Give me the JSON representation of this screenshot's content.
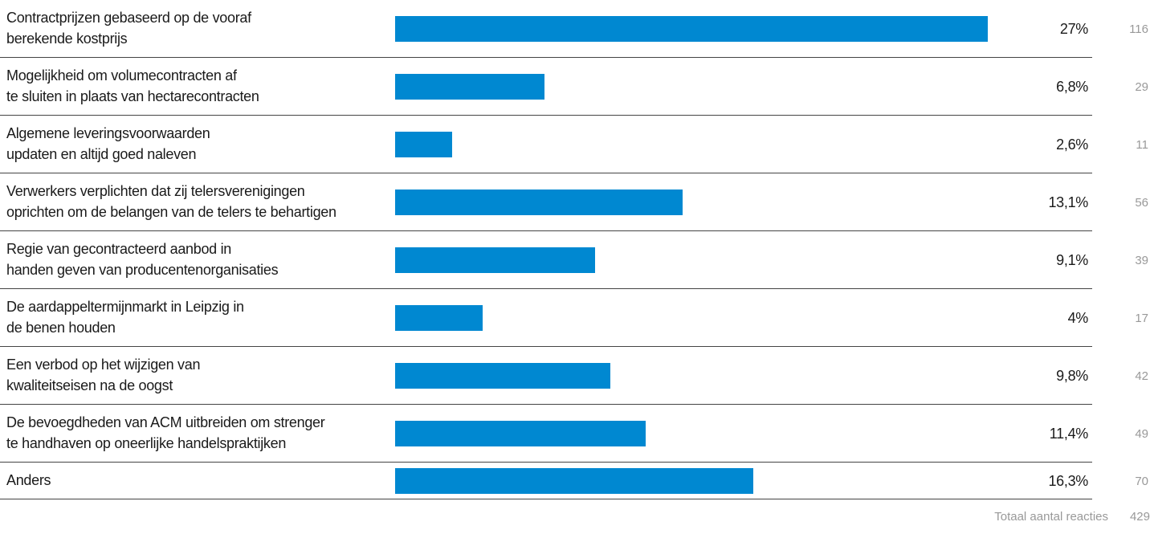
{
  "chart_data": {
    "type": "bar",
    "orientation": "horizontal",
    "color": "#0088d1",
    "categories": [
      "Contractprijzen gebaseerd op de vooraf\nberekende kostprijs",
      "Mogelijkheid om volumecontracten af\nte sluiten in plaats van hectarecontracten",
      "Algemene leveringsvoorwaarden\nupdaten en altijd goed naleven",
      "Verwerkers verplichten dat zij telersverenigingen\noprichten om de belangen van de telers te behartigen",
      "Regie van gecontracteerd aanbod in\nhanden geven van producentenorganisaties",
      "De aardappeltermijnmarkt in Leipzig in\nde benen houden",
      "Een verbod op het wijzigen van\nkwaliteitseisen na de oogst",
      "De bevoegdheden van ACM uitbreiden om strenger\nte handhaven op oneerlijke handelspraktijken",
      "Anders"
    ],
    "values": [
      27,
      6.8,
      2.6,
      13.1,
      9.1,
      4,
      9.8,
      11.4,
      16.3
    ],
    "value_labels": [
      "27%",
      "6,8%",
      "2,6%",
      "13,1%",
      "9,1%",
      "4%",
      "9,8%",
      "11,4%",
      "16,3%"
    ],
    "counts": [
      116,
      29,
      11,
      56,
      39,
      17,
      42,
      49,
      70
    ],
    "total_label": "Totaal aantal reacties",
    "total": 429
  }
}
